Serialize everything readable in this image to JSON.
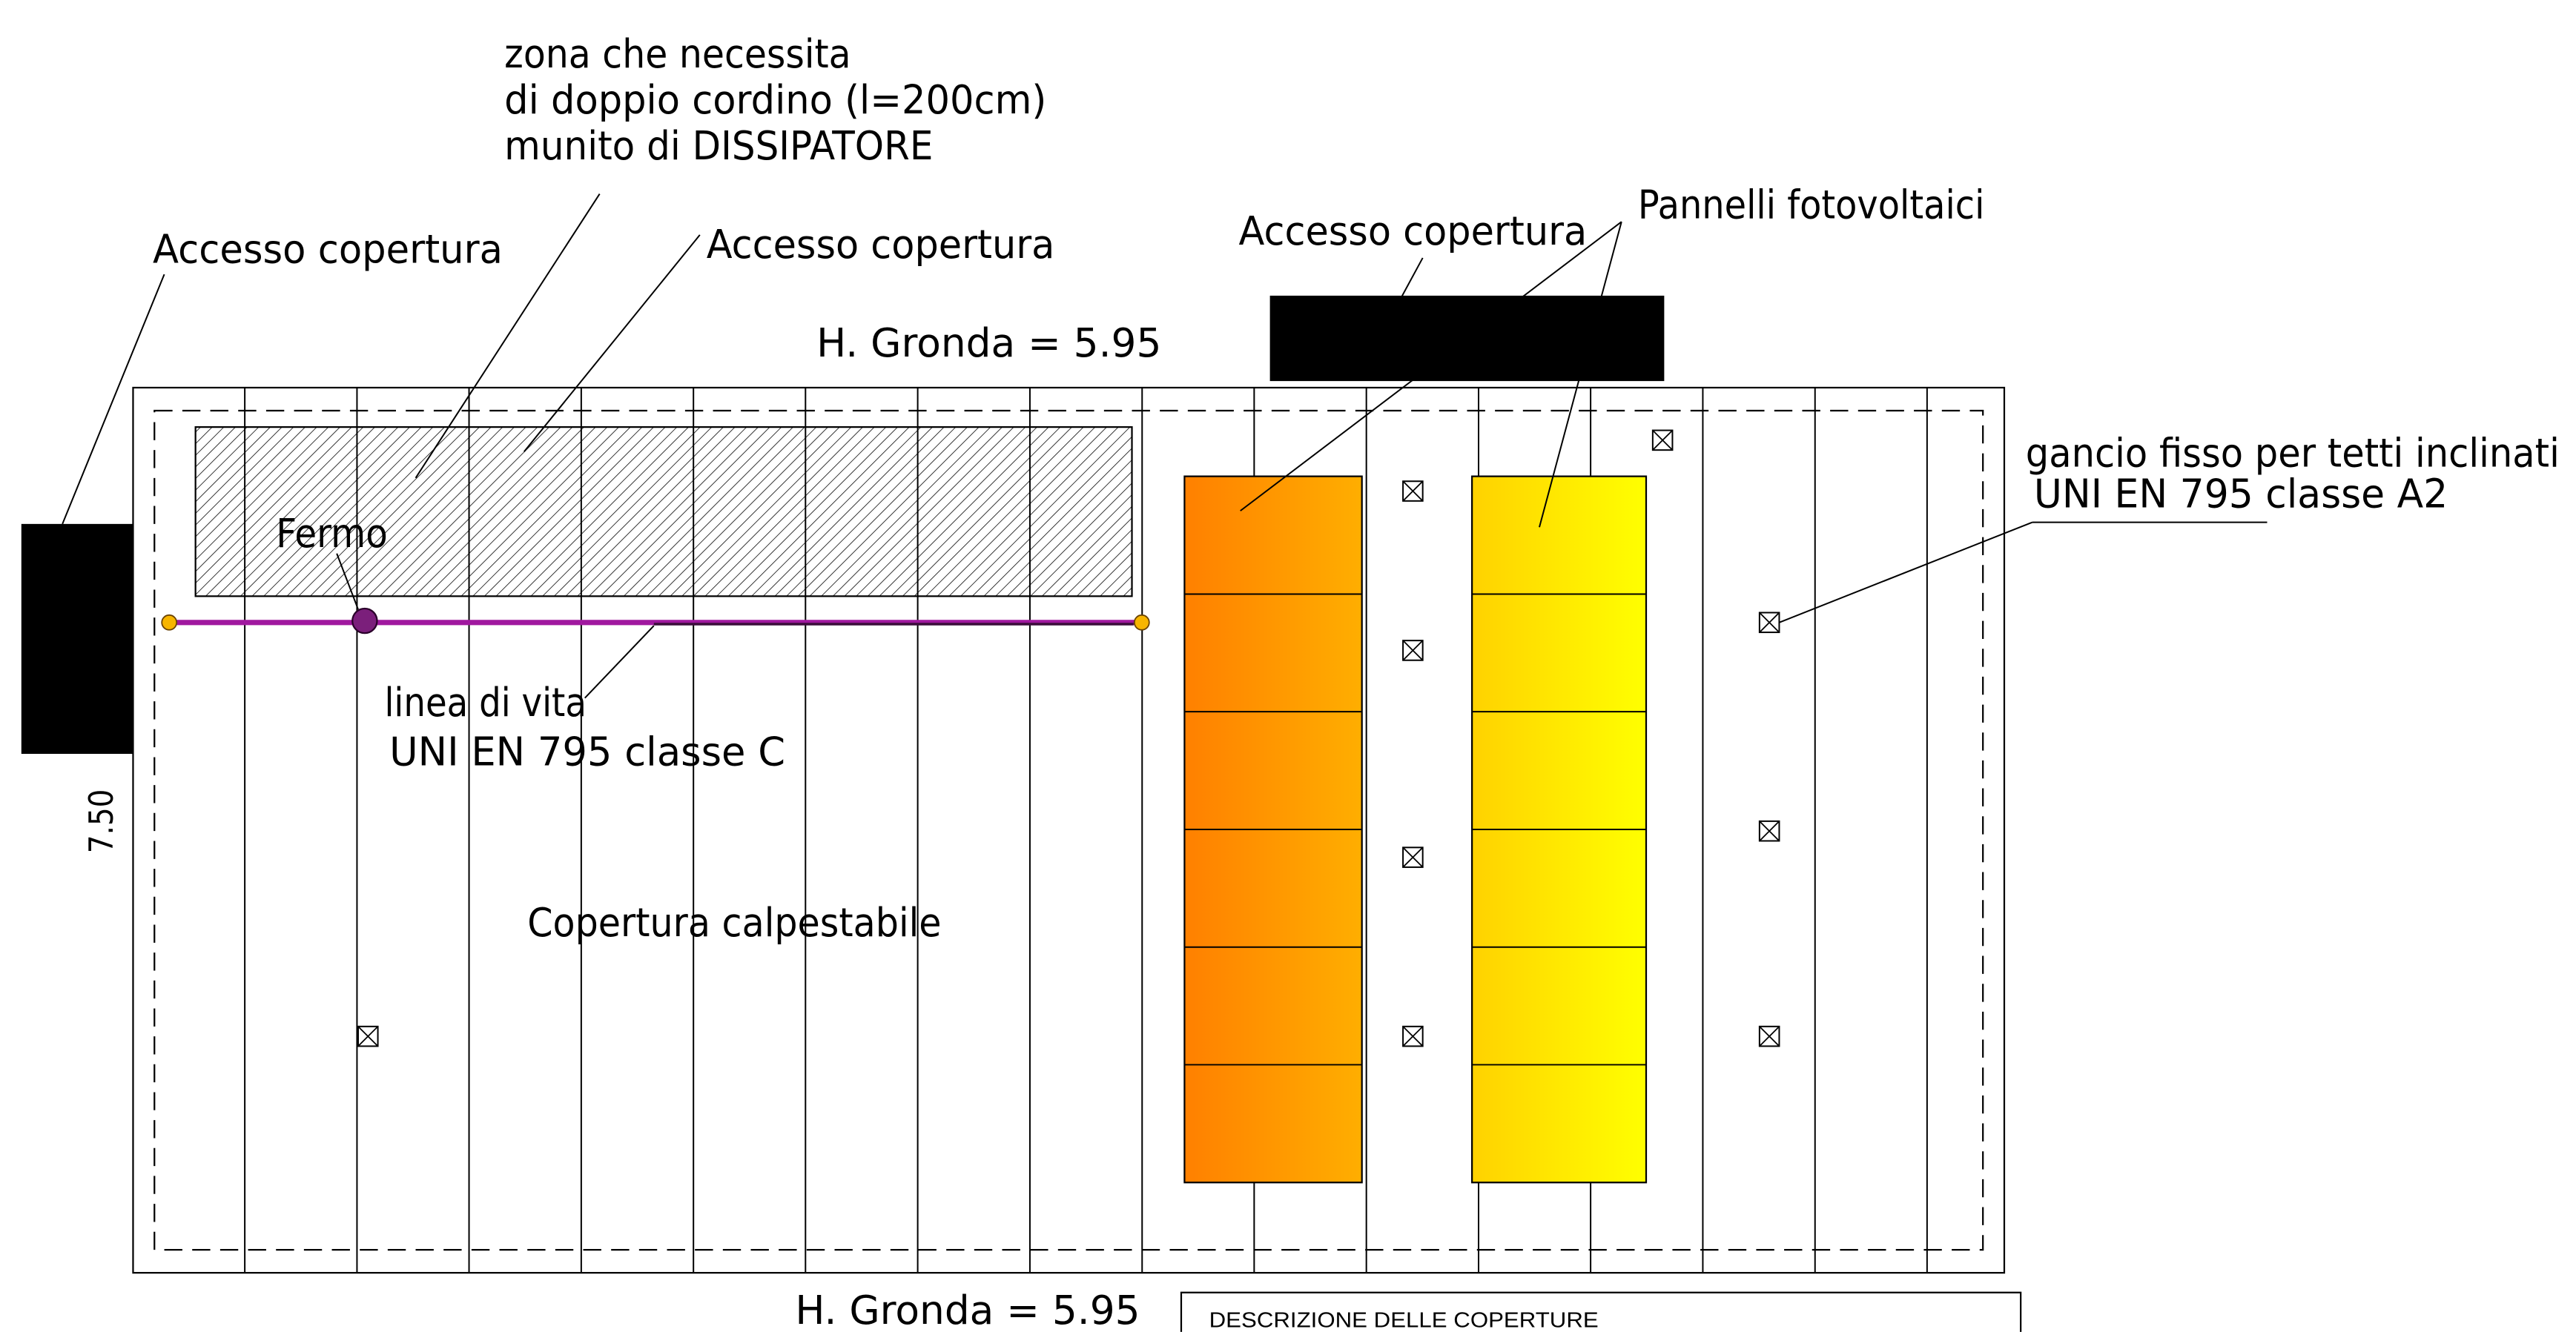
{
  "drawing": {
    "notes": {
      "zona": [
        "zona che necessita",
        "di doppio cordino (l=200cm)",
        "munito di DISSIPATORE"
      ],
      "linea_vita": [
        "linea di vita",
        "UNI EN 795 classe C"
      ],
      "gancio": [
        "gancio fisso per tetti inclinati",
        "UNI EN 795 classe A2"
      ]
    },
    "access_labels": [
      "Accesso copertura",
      "Accesso copertura",
      "Accesso copertura"
    ],
    "pannelli": "Pannelli fotovoltaici",
    "gronda_top": "H. Gronda = 5.95",
    "gronda_bottom": "H. Gronda = 5.95",
    "fermo": "Fermo",
    "dimension": "7.50",
    "copertura": "Copertura calpestabile"
  },
  "legend": {
    "title": "DESCRIZIONE DELLE COPERTURE"
  },
  "colors": {
    "lifeline": "#a0189f",
    "lifeline_dark": "#3a0d3a",
    "fermo": "#7b1f7b",
    "anchor_end": "#f7b500",
    "panel_orange_start": "#ff8000",
    "panel_orange_end": "#ffae00",
    "panel_yellow_start": "#ffd200",
    "panel_yellow_end": "#ffff00",
    "access_box": "#000000"
  }
}
